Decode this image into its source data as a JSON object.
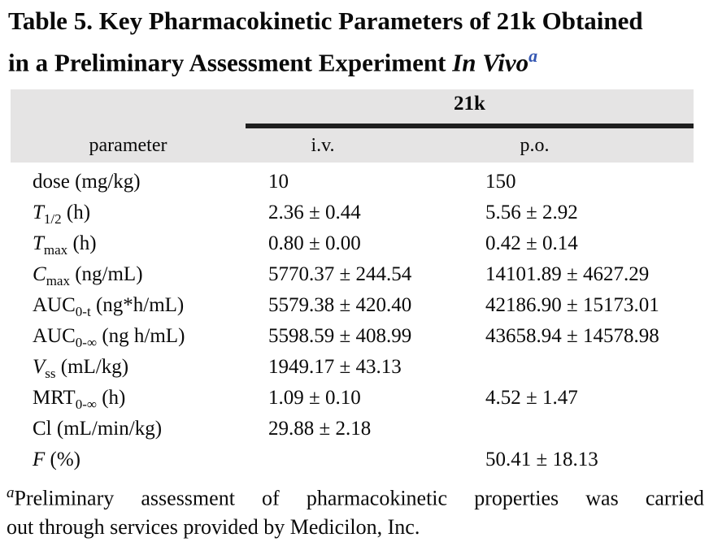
{
  "title": {
    "line1": "Table 5. Key Pharmacokinetic Parameters of 21k Obtained",
    "line2_prefix": "in a Preliminary Assessment Experiment ",
    "line2_emphasis": "In Vivo",
    "footnote_marker": "a"
  },
  "table": {
    "group_header": "21k",
    "columns": [
      "parameter",
      "i.v.",
      "p.o."
    ],
    "rows": [
      {
        "param": {
          "name": "dose",
          "italic": false,
          "sub": "",
          "rest": " (mg/kg)"
        },
        "iv": "10",
        "po": "150"
      },
      {
        "param": {
          "name": "T",
          "italic": true,
          "sub": "1/2",
          "rest": " (h)"
        },
        "iv": "2.36 ± 0.44",
        "po": "5.56 ± 2.92"
      },
      {
        "param": {
          "name": "T",
          "italic": true,
          "sub": "max",
          "rest": " (h)"
        },
        "iv": "0.80 ± 0.00",
        "po": "0.42 ± 0.14"
      },
      {
        "param": {
          "name": "C",
          "italic": true,
          "sub": "max",
          "rest": " (ng/mL)"
        },
        "iv": "5770.37 ± 244.54",
        "po": "14101.89 ± 4627.29"
      },
      {
        "param": {
          "name": "AUC",
          "italic": false,
          "sub": "0-t",
          "rest": " (ng*h/mL)"
        },
        "iv": "5579.38 ± 420.40",
        "po": "42186.90 ± 15173.01"
      },
      {
        "param": {
          "name": "AUC",
          "italic": false,
          "sub": "0-∞",
          "rest": " (ng h/mL)"
        },
        "iv": "5598.59 ± 408.99",
        "po": "43658.94 ± 14578.98"
      },
      {
        "param": {
          "name": "V",
          "italic": true,
          "sub": "ss",
          "rest": " (mL/kg)"
        },
        "iv": "1949.17 ± 43.13",
        "po": ""
      },
      {
        "param": {
          "name": "MRT",
          "italic": false,
          "sub": "0-∞",
          "rest": " (h)"
        },
        "iv": "1.09 ± 0.10",
        "po": "4.52 ± 1.47"
      },
      {
        "param": {
          "name": "Cl",
          "italic": false,
          "sub": "",
          "rest": " (mL/min/kg)"
        },
        "iv": "29.88 ± 2.18",
        "po": ""
      },
      {
        "param": {
          "name": "F",
          "italic": true,
          "sub": "",
          "rest": " (%)"
        },
        "iv": "",
        "po": "50.41 ± 18.13"
      }
    ]
  },
  "footnote": {
    "marker": "a",
    "line1": "Preliminary assessment of pharmacokinetic properties was carried",
    "line2": "out through services provided by Medicilon, Inc."
  },
  "colors": {
    "header_band": "#e5e4e4",
    "group_rule": "#1f1f1f",
    "footnote_marker_blue": "#3457b2"
  }
}
